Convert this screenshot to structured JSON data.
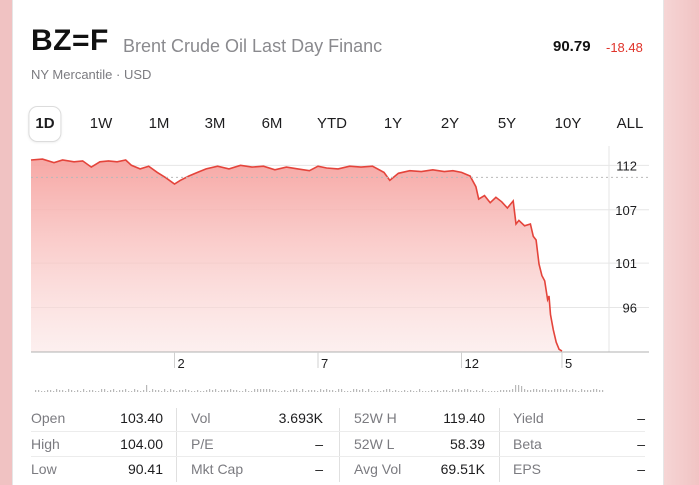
{
  "header": {
    "symbol": "BZ=F",
    "name": "Brent Crude Oil Last Day Financ",
    "price": "90.79",
    "change": "-18.48",
    "exchange": "NY Mercantile · USD"
  },
  "ranges": [
    "1D",
    "1W",
    "1M",
    "3M",
    "6M",
    "YTD",
    "1Y",
    "2Y",
    "5Y",
    "10Y",
    "ALL"
  ],
  "active_range": "1D",
  "colors": {
    "line": "#e4443b",
    "fill_top": "#f6a3a0",
    "negative": "#e0342b"
  },
  "chart_data": {
    "type": "area",
    "y_ticks": [
      "112",
      "107",
      "101",
      "96"
    ],
    "y_tick_values": [
      112,
      107,
      101,
      96
    ],
    "ylim": [
      91,
      113.5
    ],
    "x_ticks": [
      "2",
      "7",
      "12",
      "5"
    ],
    "x_tick_positions": [
      2,
      7,
      12,
      15.5
    ],
    "xlim": [
      -3,
      17
    ],
    "series": [
      {
        "x": [
          -3,
          -2.6,
          -2.2,
          -1.9,
          -1.5,
          -1.2,
          -0.9,
          -0.6,
          -0.3,
          0,
          0.3,
          0.5,
          0.8,
          1.1,
          1.4,
          1.7,
          2,
          2.2,
          2.5,
          2.8,
          3.1,
          3.5,
          3.9,
          4.3,
          4.7,
          5.1,
          5.5,
          5.9,
          6.3,
          6.7,
          7,
          7.3,
          7.7,
          8.1,
          8.5,
          8.9,
          9.3,
          9.5,
          9.8,
          10.2,
          10.6,
          11,
          11.4,
          11.7,
          12,
          12.3,
          12.5,
          12.6,
          12.8,
          13,
          13.2,
          13.4,
          13.6,
          13.8,
          13.9,
          14,
          14.2,
          14.4,
          14.5,
          14.6,
          14.7,
          14.8,
          14.9,
          15,
          15.05,
          15.1,
          15.2,
          15.3,
          15.4,
          15.5
        ],
        "y": [
          112.6,
          112.7,
          112.3,
          112.6,
          112.4,
          112.5,
          111.8,
          112.4,
          112.5,
          112.4,
          112.6,
          112.0,
          111.6,
          111.9,
          111.2,
          110.6,
          109.9,
          110.3,
          110.8,
          111.2,
          111.6,
          111.9,
          111.6,
          112.0,
          111.8,
          111.9,
          111.5,
          111.8,
          111.6,
          111.4,
          111.9,
          111.7,
          111.6,
          111.9,
          111.8,
          111.9,
          111.2,
          110.3,
          111.1,
          111.4,
          111.3,
          111.5,
          111.3,
          111.4,
          111.2,
          110.8,
          109.6,
          108.2,
          108.6,
          107.8,
          108.4,
          107.9,
          107.2,
          108.0,
          105.4,
          105.8,
          105.2,
          105.4,
          104.0,
          103.6,
          100.9,
          99.6,
          99.0,
          96.9,
          97.3,
          95.2,
          93.5,
          92.1,
          91.3,
          91.1
        ]
      }
    ],
    "grid": true
  },
  "stats": {
    "open_label": "Open",
    "open": "103.40",
    "high_label": "High",
    "high": "104.00",
    "low_label": "Low",
    "low": "90.41",
    "vol_label": "Vol",
    "vol": "3.693K",
    "pe_label": "P/E",
    "pe": "–",
    "mktcap_label": "Mkt Cap",
    "mktcap": "–",
    "w52h_label": "52W H",
    "w52h": "119.40",
    "w52l_label": "52W L",
    "w52l": "58.39",
    "avgvol_label": "Avg Vol",
    "avgvol": "69.51K",
    "yield_label": "Yield",
    "yield": "–",
    "beta_label": "Beta",
    "beta": "–",
    "eps_label": "EPS",
    "eps": "–"
  }
}
